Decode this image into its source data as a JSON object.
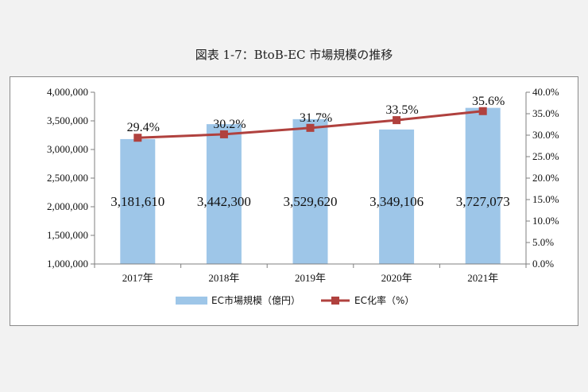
{
  "title": "図表 1-7：BtoB-EC 市場規模の推移",
  "chart_data": {
    "type": "bar",
    "categories": [
      "2017年",
      "2018年",
      "2019年",
      "2020年",
      "2021年"
    ],
    "series": [
      {
        "name": "EC市場規模（億円）",
        "type": "bar",
        "axis": "left",
        "color": "#9ec6e8",
        "values": [
          3181610,
          3442300,
          3529620,
          3349106,
          3727073
        ],
        "labels": [
          "3,181,610",
          "3,442,300",
          "3,529,620",
          "3,349,106",
          "3,727,073"
        ]
      },
      {
        "name": "EC化率（%）",
        "type": "line",
        "axis": "right",
        "color": "#b0413e",
        "values": [
          29.4,
          30.2,
          31.7,
          33.5,
          35.6
        ],
        "labels": [
          "29.4%",
          "30.2%",
          "31.7%",
          "33.5%",
          "35.6%"
        ]
      }
    ],
    "y_left": {
      "range": [
        1000000,
        4000000
      ],
      "ticks": [
        1000000,
        1500000,
        2000000,
        2500000,
        3000000,
        3500000,
        4000000
      ],
      "tick_labels": [
        "1,000,000",
        "1,500,000",
        "2,000,000",
        "2,500,000",
        "3,000,000",
        "3,500,000",
        "4,000,000"
      ]
    },
    "y_right": {
      "range": [
        0,
        40
      ],
      "ticks": [
        0,
        5,
        10,
        15,
        20,
        25,
        30,
        35,
        40
      ],
      "tick_labels": [
        "0.0%",
        "5.0%",
        "10.0%",
        "15.0%",
        "20.0%",
        "25.0%",
        "30.0%",
        "35.0%",
        "40.0%"
      ]
    },
    "grid": false,
    "legend_position": "bottom"
  }
}
